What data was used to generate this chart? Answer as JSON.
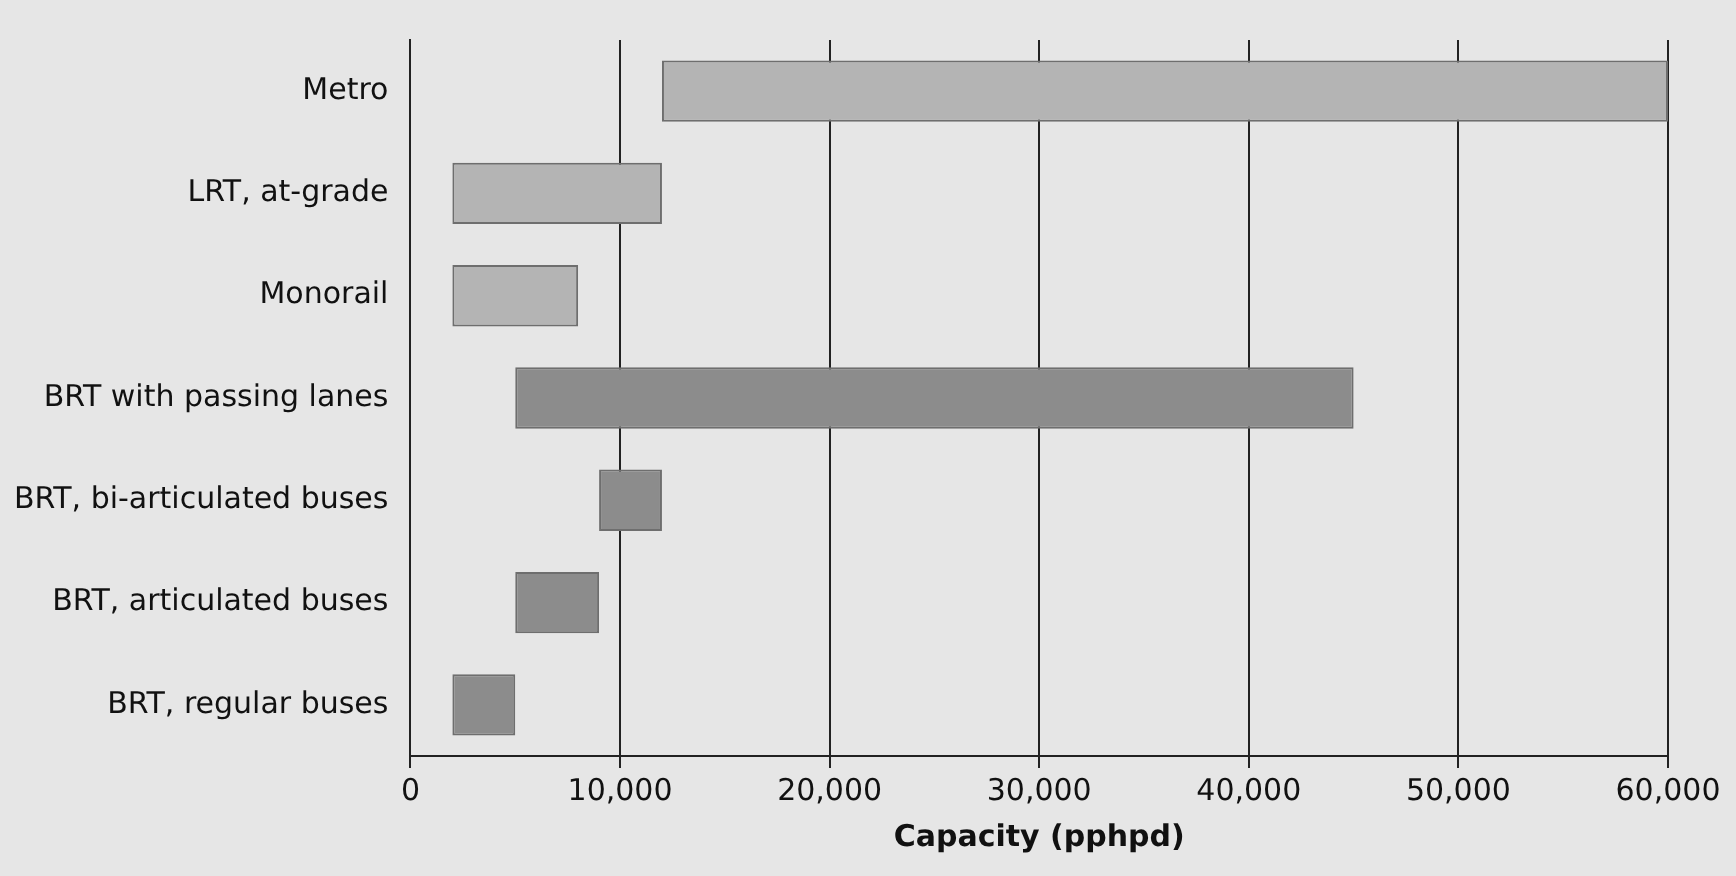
{
  "chart_data": {
    "type": "bar",
    "orientation": "horizontal",
    "xlabel": "Capacity (pphpd)",
    "categories": [
      "Metro",
      "LRT, at-grade",
      "Monorail",
      "BRT with passing lanes",
      "BRT, bi-articulated buses",
      "BRT, articulated buses",
      "BRT, regular buses"
    ],
    "base": [
      12000,
      2000,
      2000,
      5000,
      9000,
      5000,
      2000
    ],
    "values": [
      48000,
      10000,
      6000,
      40000,
      3000,
      4000,
      3000
    ],
    "colors": [
      "#b4b4b4",
      "#b4b4b4",
      "#b4b4b4",
      "#8c8c8c",
      "#8c8c8c",
      "#8c8c8c",
      "#8c8c8c"
    ],
    "xlim": [
      0,
      60000
    ],
    "xticks": [
      0,
      {
        "value": 10000,
        "label": "10,000"
      },
      {
        "value": 20000,
        "label": "20,000"
      },
      {
        "value": 30000,
        "label": "30,000"
      },
      {
        "value": 40000,
        "label": "40,000"
      },
      {
        "value": 50000,
        "label": "50,000"
      },
      {
        "value": 60000,
        "label": "60,000"
      }
    ],
    "grid": "x",
    "legend": false
  }
}
